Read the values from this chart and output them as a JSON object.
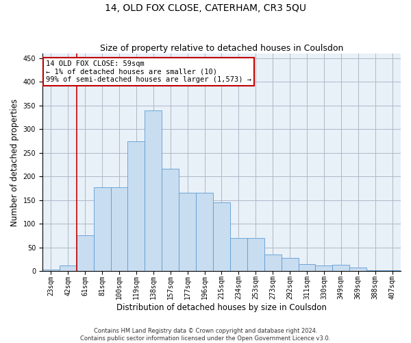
{
  "title": "14, OLD FOX CLOSE, CATERHAM, CR3 5QU",
  "subtitle": "Size of property relative to detached houses in Coulsdon",
  "xlabel": "Distribution of detached houses by size in Coulsdon",
  "ylabel": "Number of detached properties",
  "footer_line1": "Contains HM Land Registry data © Crown copyright and database right 2024.",
  "footer_line2": "Contains public sector information licensed under the Open Government Licence v3.0.",
  "annotation_title": "14 OLD FOX CLOSE: 59sqm",
  "annotation_line1": "← 1% of detached houses are smaller (10)",
  "annotation_line2": "99% of semi-detached houses are larger (1,573) →",
  "bar_categories": [
    "23sqm",
    "42sqm",
    "61sqm",
    "81sqm",
    "100sqm",
    "119sqm",
    "138sqm",
    "157sqm",
    "177sqm",
    "196sqm",
    "215sqm",
    "234sqm",
    "253sqm",
    "273sqm",
    "292sqm",
    "311sqm",
    "330sqm",
    "349sqm",
    "369sqm",
    "388sqm",
    "407sqm"
  ],
  "bar_values": [
    3,
    11,
    75,
    177,
    177,
    275,
    340,
    216,
    165,
    165,
    145,
    70,
    70,
    35,
    28,
    15,
    11,
    13,
    7,
    1,
    2
  ],
  "bar_color": "#c9ddf0",
  "bar_edge_color": "#5b9bd5",
  "vline_color": "#c00000",
  "vline_x_index": 1.5,
  "annotation_box_color": "#c00000",
  "background_color": "#ffffff",
  "plot_bg_color": "#e8f0f8",
  "grid_color": "#b0b8c8",
  "ylim": [
    0,
    460
  ],
  "yticks": [
    0,
    50,
    100,
    150,
    200,
    250,
    300,
    350,
    400,
    450
  ],
  "title_fontsize": 10,
  "subtitle_fontsize": 9,
  "xlabel_fontsize": 8.5,
  "ylabel_fontsize": 8.5,
  "tick_fontsize": 7,
  "annot_fontsize": 7.5,
  "footer_fontsize": 6
}
